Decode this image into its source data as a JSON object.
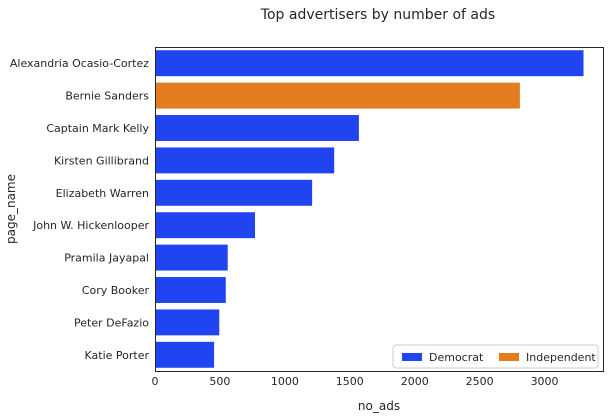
{
  "chart_data": {
    "type": "bar",
    "orientation": "horizontal",
    "title": "Top advertisers by number of ads",
    "xlabel": "no_ads",
    "ylabel": "page_name",
    "xlim": [
      0,
      3450
    ],
    "xticks": [
      0,
      500,
      1000,
      1500,
      2000,
      2500,
      3000
    ],
    "grid": false,
    "legend_position": "bottom-right",
    "categories": [
      "Alexandria Ocasio-Cortez",
      "Bernie Sanders",
      "Captain Mark Kelly",
      "Kirsten Gillibrand",
      "Elizabeth Warren",
      "John W. Hickenlooper",
      "Pramila Jayapal",
      "Cory Booker",
      "Peter DeFazio",
      "Katie Porter"
    ],
    "values": [
      3300,
      2810,
      1570,
      1380,
      1210,
      770,
      560,
      545,
      495,
      455
    ],
    "party": [
      "Democrat",
      "Independent",
      "Democrat",
      "Democrat",
      "Democrat",
      "Democrat",
      "Democrat",
      "Democrat",
      "Democrat",
      "Democrat"
    ],
    "series": [
      {
        "name": "Democrat",
        "color": "#1f44f0"
      },
      {
        "name": "Independent",
        "color": "#e27c1e"
      }
    ]
  }
}
